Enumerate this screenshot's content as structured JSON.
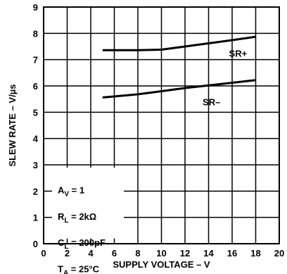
{
  "chart_data": {
    "type": "line",
    "xlabel": "SUPPLY VOLTAGE – V",
    "ylabel": "SLEW RATE – V/µs",
    "xlim": [
      0,
      20
    ],
    "ylim": [
      0,
      9
    ],
    "x_ticks": [
      0,
      2,
      4,
      6,
      8,
      10,
      12,
      14,
      16,
      18,
      20
    ],
    "y_ticks": [
      0,
      1,
      2,
      3,
      4,
      5,
      6,
      7,
      8,
      9
    ],
    "grid": true,
    "series": [
      {
        "name": "SR+",
        "x": [
          5,
          8,
          10,
          12,
          14,
          16,
          18
        ],
        "y": [
          7.36,
          7.36,
          7.38,
          7.5,
          7.62,
          7.74,
          7.87
        ]
      },
      {
        "name": "SR–",
        "x": [
          5,
          8,
          10,
          12,
          14,
          16,
          18
        ],
        "y": [
          5.56,
          5.68,
          5.8,
          5.92,
          6.02,
          6.12,
          6.22
        ]
      }
    ],
    "conditions": [
      {
        "main": "A",
        "sub": "V",
        "rest": " = 1"
      },
      {
        "main": "R",
        "sub": "L",
        "rest": " = 2kΩ"
      },
      {
        "main": "C",
        "sub": "L",
        "rest": " = 200pF"
      },
      {
        "main": "T",
        "sub": "A",
        "rest": " = 25°C"
      }
    ]
  }
}
